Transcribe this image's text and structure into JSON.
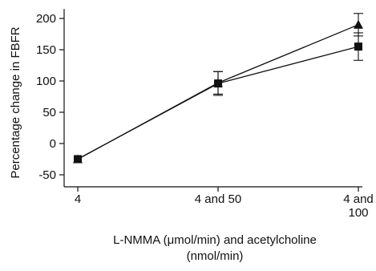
{
  "chart_data": {
    "type": "line",
    "title": "",
    "xlabel_lines": [
      "L-NMMA (μmol/min) and acetylcholine",
      "(nmol/min)"
    ],
    "ylabel": "Percentage change in FBFR",
    "categories": [
      [
        "4"
      ],
      [
        "4 and 50"
      ],
      [
        "4 and",
        "100"
      ]
    ],
    "yticks": [
      -50,
      0,
      50,
      100,
      150,
      200
    ],
    "ylim": [
      -70,
      215
    ],
    "grid": false,
    "series": [
      {
        "marker": "triangle",
        "values": [
          -25,
          97,
          190
        ],
        "errors": [
          null,
          18,
          18
        ]
      },
      {
        "marker": "square",
        "values": [
          -25,
          96,
          155
        ],
        "errors": [
          null,
          19,
          22
        ]
      }
    ]
  }
}
